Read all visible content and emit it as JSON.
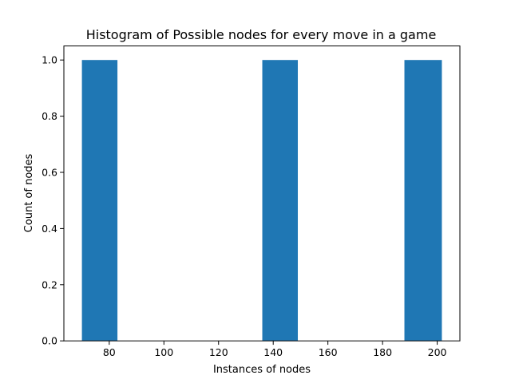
{
  "chart_data": {
    "type": "bar",
    "title": "Histogram of Possible nodes for every move in a game",
    "xlabel": "Instances of nodes",
    "ylabel": "Count of nodes",
    "xlim": [
      63.4,
      208.3
    ],
    "ylim": [
      0,
      1.05
    ],
    "xticks": [
      80,
      100,
      120,
      140,
      160,
      180,
      200
    ],
    "yticks": [
      0.0,
      0.2,
      0.4,
      0.6,
      0.8,
      1.0
    ],
    "bins": [
      {
        "x0": 70.0,
        "x1": 83.0,
        "count": 1
      },
      {
        "x0": 83.0,
        "x1": 96.0,
        "count": 0
      },
      {
        "x0": 96.0,
        "x1": 109.0,
        "count": 0
      },
      {
        "x0": 109.0,
        "x1": 122.0,
        "count": 0
      },
      {
        "x0": 122.0,
        "x1": 136.0,
        "count": 0
      },
      {
        "x0": 136.0,
        "x1": 149.0,
        "count": 1
      },
      {
        "x0": 149.0,
        "x1": 162.0,
        "count": 0
      },
      {
        "x0": 162.0,
        "x1": 175.0,
        "count": 0
      },
      {
        "x0": 175.0,
        "x1": 188.0,
        "count": 0
      },
      {
        "x0": 188.0,
        "x1": 201.7,
        "count": 1
      }
    ],
    "bar_color": "#1f77b4",
    "grid": false
  }
}
